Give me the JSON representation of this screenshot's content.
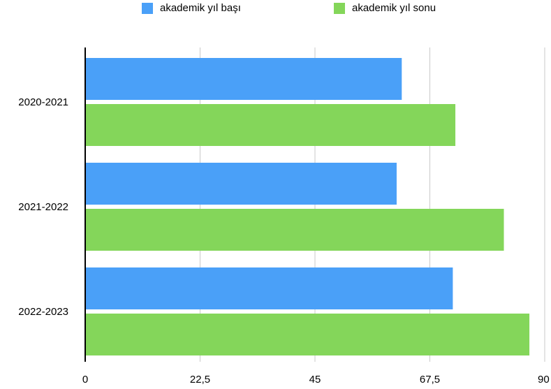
{
  "chart_data": {
    "type": "bar",
    "orientation": "horizontal",
    "categories": [
      "2020-2021",
      "2021-2022",
      "2022-2023"
    ],
    "series": [
      {
        "name": "akademik yıl başı",
        "color": "#4aa0f8",
        "values": [
          62,
          61,
          72
        ]
      },
      {
        "name": "akademik yıl sonu",
        "color": "#84d65a",
        "values": [
          72.5,
          82,
          87
        ]
      }
    ],
    "x_ticks": [
      "0",
      "22,5",
      "45",
      "67,5",
      "90"
    ],
    "xlim": [
      0,
      90
    ],
    "grid": true,
    "legend_position": "top"
  }
}
